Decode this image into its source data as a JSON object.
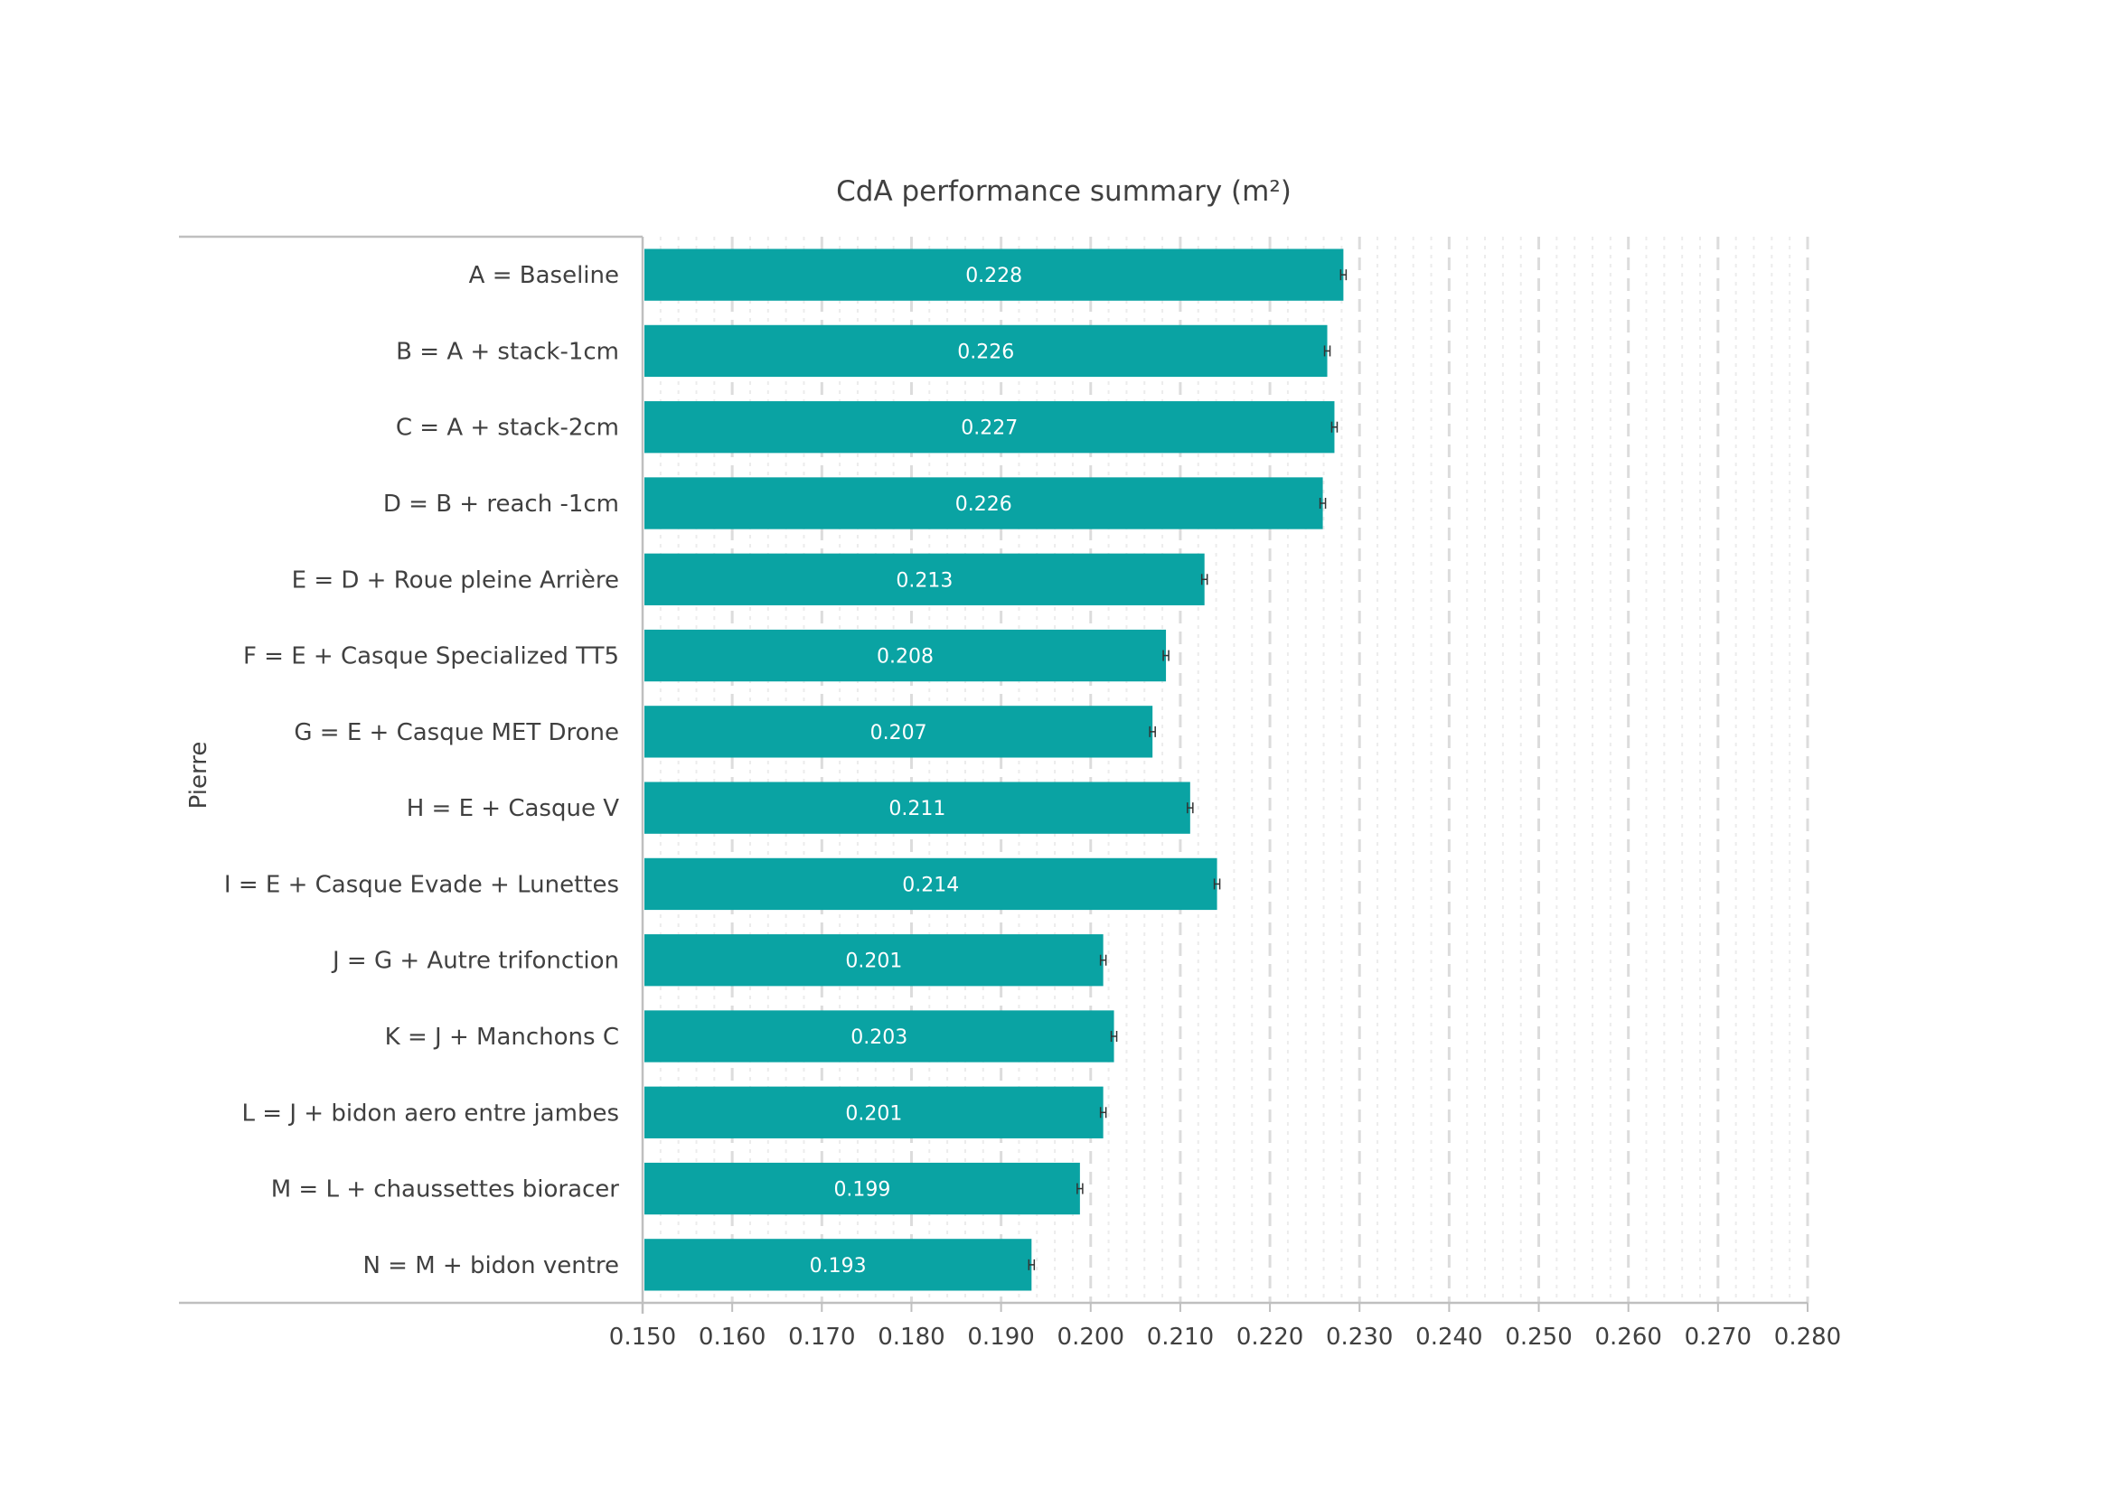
{
  "chart_data": {
    "type": "bar",
    "orientation": "horizontal",
    "title": "CdA performance summary (m²)",
    "xlabel": "",
    "ylabel": "Pierre",
    "xlim": [
      0.15,
      0.28
    ],
    "xticks": [
      "0.150",
      "0.160",
      "0.170",
      "0.180",
      "0.190",
      "0.200",
      "0.210",
      "0.220",
      "0.230",
      "0.240",
      "0.250",
      "0.260",
      "0.270",
      "0.280"
    ],
    "grid": "vertical dashed",
    "legend": "none",
    "colors": {
      "bar": "#0aa3a3",
      "error_bar": "#333333",
      "grid": "#dcdcdc",
      "axis": "#bfbfbf",
      "text": "#404040"
    },
    "categories": [
      "A =  Baseline",
      "B =  A + stack-1cm",
      "C =  A + stack-2cm",
      "D =  B + reach -1cm",
      "E =  D + Roue pleine Arrière",
      "F =  E + Casque Specialized TT5",
      "G =  E + Casque MET Drone",
      "H =  E + Casque V",
      "I =  E + Casque Evade + Lunettes",
      "J =  G + Autre trifonction",
      "K =  J + Manchons C",
      "L =  J + bidon aero entre jambes",
      "M =  L + chaussettes bioracer",
      "N =  M + bidon ventre"
    ],
    "values": [
      0.2282,
      0.2264,
      0.2272,
      0.2259,
      0.2127,
      0.2084,
      0.2069,
      0.2111,
      0.2141,
      0.2014,
      0.2026,
      0.2014,
      0.1988,
      0.1934
    ],
    "data_labels": [
      "0.228",
      "0.226",
      "0.227",
      "0.226",
      "0.213",
      "0.208",
      "0.207",
      "0.211",
      "0.214",
      "0.201",
      "0.203",
      "0.201",
      "0.199",
      "0.193"
    ],
    "error_bars": [
      0.0002,
      0.0002,
      0.0002,
      0.0002,
      0.0002,
      0.0002,
      0.0002,
      0.0002,
      0.0002,
      0.0002,
      0.0002,
      0.0002,
      0.0002,
      0.0002
    ]
  }
}
